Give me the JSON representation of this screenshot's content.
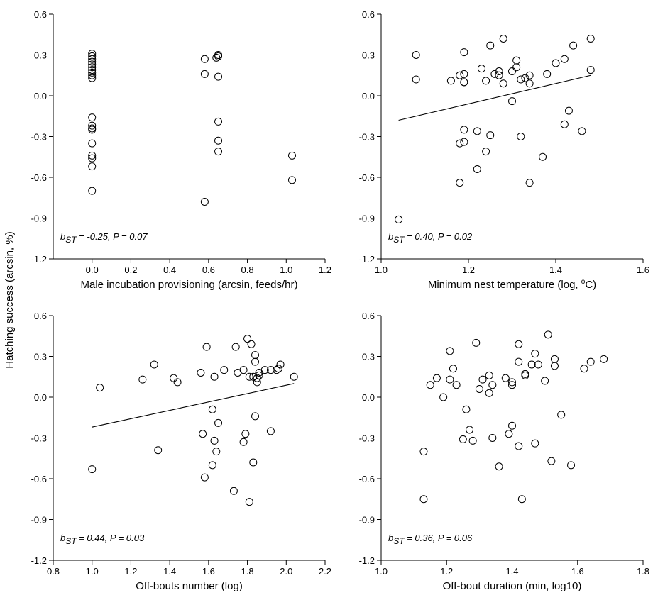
{
  "figure": {
    "ylabel": "Hatching success (arcsin, %)"
  },
  "chart_data": [
    {
      "type": "scatter",
      "xlabel": "Male incubation provisioning (arcsin, feeds/hr)",
      "ylabel": "Hatching success (arcsin, %)",
      "xlim": [
        -0.2,
        1.2
      ],
      "ylim": [
        -1.2,
        0.6
      ],
      "xticks": [
        0.0,
        0.2,
        0.4,
        0.6,
        0.8,
        1.0,
        1.2
      ],
      "yticks": [
        -1.2,
        -0.9,
        -0.6,
        -0.3,
        0.0,
        0.3,
        0.6
      ],
      "xtick_labels": [
        "0.0",
        "0.2",
        "0.4",
        "0.6",
        "0.8",
        "1.0",
        "1.2"
      ],
      "ytick_labels": [
        "-1.2",
        "-0.9",
        "-0.6",
        "-0.3",
        "0.0",
        "0.3",
        "0.6"
      ],
      "annotation": {
        "b": "b",
        "sub": "ST",
        "rest": " = -0.25, P = 0.07"
      },
      "regression": null,
      "points": [
        [
          0,
          0.31
        ],
        [
          0,
          0.29
        ],
        [
          0,
          0.27
        ],
        [
          0,
          0.25
        ],
        [
          0,
          0.23
        ],
        [
          0,
          0.21
        ],
        [
          0,
          0.19
        ],
        [
          0,
          0.17
        ],
        [
          0,
          0.15
        ],
        [
          0,
          0.13
        ],
        [
          0,
          -0.16
        ],
        [
          0,
          -0.22
        ],
        [
          0,
          -0.24
        ],
        [
          0,
          -0.25
        ],
        [
          0,
          -0.35
        ],
        [
          0,
          -0.44
        ],
        [
          0,
          -0.46
        ],
        [
          0,
          -0.52
        ],
        [
          0,
          -0.7
        ],
        [
          0.58,
          0.27
        ],
        [
          0.58,
          0.16
        ],
        [
          0.65,
          0.3
        ],
        [
          0.65,
          0.29
        ],
        [
          0.64,
          0.28
        ],
        [
          0.65,
          0.14
        ],
        [
          0.65,
          -0.19
        ],
        [
          0.65,
          -0.33
        ],
        [
          0.65,
          -0.41
        ],
        [
          0.58,
          -0.78
        ],
        [
          1.03,
          -0.44
        ],
        [
          1.03,
          -0.62
        ]
      ]
    },
    {
      "type": "scatter",
      "xlabel": "Minimum nest temperature (log, °C)",
      "xlabel_parts": [
        "Minimum nest temperature (log, ",
        "o",
        "C)"
      ],
      "ylabel": "Hatching success (arcsin, %)",
      "xlim": [
        1.0,
        1.6
      ],
      "ylim": [
        -1.2,
        0.6
      ],
      "xticks": [
        1.0,
        1.2,
        1.4,
        1.6
      ],
      "yticks": [
        -1.2,
        -0.9,
        -0.6,
        -0.3,
        0.0,
        0.3,
        0.6
      ],
      "xtick_labels": [
        "1.0",
        "1.2",
        "1.4",
        "1.6"
      ],
      "ytick_labels": [
        "-1.2",
        "-0.9",
        "-0.6",
        "-0.3",
        "0.0",
        "0.3",
        "0.6"
      ],
      "annotation": {
        "b": "b",
        "sub": "ST",
        "rest": " = 0.40, P = 0.02"
      },
      "regression": [
        [
          1.04,
          -0.18
        ],
        [
          1.48,
          0.15
        ]
      ],
      "points": [
        [
          1.08,
          0.3
        ],
        [
          1.08,
          0.12
        ],
        [
          1.19,
          0.32
        ],
        [
          1.16,
          0.11
        ],
        [
          1.18,
          0.15
        ],
        [
          1.19,
          0.16
        ],
        [
          1.19,
          0.1
        ],
        [
          1.19,
          0.1
        ],
        [
          1.23,
          0.2
        ],
        [
          1.24,
          0.11
        ],
        [
          1.25,
          0.37
        ],
        [
          1.26,
          0.16
        ],
        [
          1.27,
          0.15
        ],
        [
          1.27,
          0.18
        ],
        [
          1.28,
          0.09
        ],
        [
          1.28,
          0.42
        ],
        [
          1.3,
          0.18
        ],
        [
          1.31,
          0.26
        ],
        [
          1.31,
          0.21
        ],
        [
          1.32,
          0.12
        ],
        [
          1.33,
          0.13
        ],
        [
          1.34,
          0.09
        ],
        [
          1.34,
          0.15
        ],
        [
          1.38,
          0.16
        ],
        [
          1.4,
          0.24
        ],
        [
          1.42,
          0.27
        ],
        [
          1.44,
          0.37
        ],
        [
          1.48,
          0.42
        ],
        [
          1.48,
          0.19
        ],
        [
          1.3,
          -0.04
        ],
        [
          1.22,
          -0.26
        ],
        [
          1.19,
          -0.25
        ],
        [
          1.18,
          -0.35
        ],
        [
          1.19,
          -0.34
        ],
        [
          1.25,
          -0.29
        ],
        [
          1.32,
          -0.3
        ],
        [
          1.24,
          -0.41
        ],
        [
          1.22,
          -0.54
        ],
        [
          1.18,
          -0.64
        ],
        [
          1.34,
          -0.64
        ],
        [
          1.37,
          -0.45
        ],
        [
          1.42,
          -0.21
        ],
        [
          1.43,
          -0.11
        ],
        [
          1.46,
          -0.26
        ],
        [
          1.04,
          -0.91
        ]
      ]
    },
    {
      "type": "scatter",
      "xlabel": "Off-bouts number (log)",
      "ylabel": "Hatching success (arcsin, %)",
      "xlim": [
        0.8,
        2.2
      ],
      "ylim": [
        -1.2,
        0.6
      ],
      "xticks": [
        0.8,
        1.0,
        1.2,
        1.4,
        1.6,
        1.8,
        2.0,
        2.2
      ],
      "yticks": [
        -1.2,
        -0.9,
        -0.6,
        -0.3,
        0.0,
        0.3,
        0.6
      ],
      "xtick_labels": [
        "0.8",
        "1.0",
        "1.2",
        "1.4",
        "1.6",
        "1.8",
        "2.0",
        "2.2"
      ],
      "ytick_labels": [
        "-1.2",
        "-0.9",
        "-0.6",
        "-0.3",
        "0.0",
        "0.3",
        "0.6"
      ],
      "annotation": {
        "b": "b",
        "sub": "ST",
        "rest": " = 0.44, P = 0.03"
      },
      "regression": [
        [
          1.0,
          -0.22
        ],
        [
          2.04,
          0.1
        ]
      ],
      "points": [
        [
          1.04,
          0.07
        ],
        [
          1.26,
          0.13
        ],
        [
          1.32,
          0.24
        ],
        [
          1.42,
          0.14
        ],
        [
          1.44,
          0.11
        ],
        [
          1.56,
          0.18
        ],
        [
          1.59,
          0.37
        ],
        [
          1.63,
          0.15
        ],
        [
          1.68,
          0.2
        ],
        [
          1.74,
          0.37
        ],
        [
          1.75,
          0.18
        ],
        [
          1.78,
          0.2
        ],
        [
          1.8,
          0.43
        ],
        [
          1.81,
          0.15
        ],
        [
          1.82,
          0.39
        ],
        [
          1.83,
          0.15
        ],
        [
          1.84,
          0.31
        ],
        [
          1.84,
          0.26
        ],
        [
          1.85,
          0.14
        ],
        [
          1.86,
          0.18
        ],
        [
          1.86,
          0.16
        ],
        [
          1.89,
          0.2
        ],
        [
          1.92,
          0.2
        ],
        [
          1.95,
          0.2
        ],
        [
          1.96,
          0.21
        ],
        [
          1.97,
          0.24
        ],
        [
          2.04,
          0.15
        ],
        [
          1.85,
          0.11
        ],
        [
          1.0,
          -0.53
        ],
        [
          1.34,
          -0.39
        ],
        [
          1.57,
          -0.27
        ],
        [
          1.58,
          -0.59
        ],
        [
          1.62,
          -0.09
        ],
        [
          1.63,
          -0.32
        ],
        [
          1.62,
          -0.5
        ],
        [
          1.64,
          -0.4
        ],
        [
          1.65,
          -0.19
        ],
        [
          1.73,
          -0.69
        ],
        [
          1.78,
          -0.33
        ],
        [
          1.79,
          -0.27
        ],
        [
          1.81,
          -0.77
        ],
        [
          1.83,
          -0.48
        ],
        [
          1.84,
          -0.14
        ],
        [
          1.92,
          -0.25
        ]
      ]
    },
    {
      "type": "scatter",
      "xlabel": "Off-bout duration (min, log10)",
      "ylabel": "Hatching success (arcsin, %)",
      "xlim": [
        1.0,
        1.8
      ],
      "ylim": [
        -1.2,
        0.6
      ],
      "xticks": [
        1.0,
        1.2,
        1.4,
        1.6,
        1.8
      ],
      "yticks": [
        -1.2,
        -0.9,
        -0.6,
        -0.3,
        0.0,
        0.3,
        0.6
      ],
      "xtick_labels": [
        "1.0",
        "1.2",
        "1.4",
        "1.6",
        "1.8"
      ],
      "ytick_labels": [
        "-1.2",
        "-0.9",
        "-0.6",
        "-0.3",
        "0.0",
        "0.3",
        "0.6"
      ],
      "annotation": {
        "b": "b",
        "sub": "ST",
        "rest": " = 0.36, P = 0.06"
      },
      "regression": null,
      "points": [
        [
          1.15,
          0.09
        ],
        [
          1.17,
          0.14
        ],
        [
          1.19,
          0.0
        ],
        [
          1.21,
          0.13
        ],
        [
          1.21,
          0.34
        ],
        [
          1.22,
          0.21
        ],
        [
          1.23,
          0.09
        ],
        [
          1.29,
          0.4
        ],
        [
          1.3,
          0.06
        ],
        [
          1.31,
          0.13
        ],
        [
          1.33,
          0.16
        ],
        [
          1.33,
          0.03
        ],
        [
          1.34,
          0.09
        ],
        [
          1.38,
          0.14
        ],
        [
          1.4,
          0.11
        ],
        [
          1.4,
          0.09
        ],
        [
          1.42,
          0.26
        ],
        [
          1.42,
          0.39
        ],
        [
          1.44,
          0.17
        ],
        [
          1.44,
          0.16
        ],
        [
          1.46,
          0.24
        ],
        [
          1.47,
          0.32
        ],
        [
          1.48,
          0.24
        ],
        [
          1.5,
          0.12
        ],
        [
          1.51,
          0.46
        ],
        [
          1.53,
          0.28
        ],
        [
          1.53,
          0.23
        ],
        [
          1.62,
          0.21
        ],
        [
          1.64,
          0.26
        ],
        [
          1.68,
          0.28
        ],
        [
          1.13,
          -0.4
        ],
        [
          1.13,
          -0.75
        ],
        [
          1.26,
          -0.09
        ],
        [
          1.27,
          -0.24
        ],
        [
          1.25,
          -0.31
        ],
        [
          1.28,
          -0.32
        ],
        [
          1.34,
          -0.3
        ],
        [
          1.36,
          -0.51
        ],
        [
          1.39,
          -0.27
        ],
        [
          1.4,
          -0.21
        ],
        [
          1.42,
          -0.36
        ],
        [
          1.43,
          -0.75
        ],
        [
          1.47,
          -0.34
        ],
        [
          1.52,
          -0.47
        ],
        [
          1.55,
          -0.13
        ],
        [
          1.58,
          -0.5
        ]
      ]
    }
  ]
}
